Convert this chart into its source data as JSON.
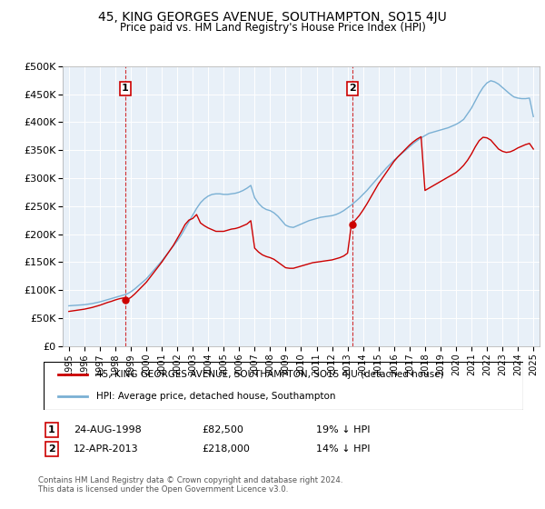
{
  "title": "45, KING GEORGES AVENUE, SOUTHAMPTON, SO15 4JU",
  "subtitle": "Price paid vs. HM Land Registry's House Price Index (HPI)",
  "legend_label_red": "45, KING GEORGES AVENUE, SOUTHAMPTON, SO15 4JU (detached house)",
  "legend_label_blue": "HPI: Average price, detached house, Southampton",
  "footnote": "Contains HM Land Registry data © Crown copyright and database right 2024.\nThis data is licensed under the Open Government Licence v3.0.",
  "sale1_date": "24-AUG-1998",
  "sale1_price": "£82,500",
  "sale1_note": "19% ↓ HPI",
  "sale2_date": "12-APR-2013",
  "sale2_price": "£218,000",
  "sale2_note": "14% ↓ HPI",
  "red_color": "#cc0000",
  "blue_color": "#7ab0d4",
  "plot_bg_color": "#e8f0f8",
  "grid_color": "#ffffff",
  "dashed_color": "#cc0000",
  "ylim": [
    0,
    500000
  ],
  "yticks": [
    0,
    50000,
    100000,
    150000,
    200000,
    250000,
    300000,
    350000,
    400000,
    450000,
    500000
  ],
  "sale1_year": 1998.625,
  "sale1_price_val": 82500,
  "sale2_year": 2013.292,
  "sale2_price_val": 218000,
  "hpi_x": [
    1995,
    1995.25,
    1995.5,
    1995.75,
    1996,
    1996.25,
    1996.5,
    1996.75,
    1997,
    1997.25,
    1997.5,
    1997.75,
    1998,
    1998.25,
    1998.5,
    1998.75,
    1999,
    1999.25,
    1999.5,
    1999.75,
    2000,
    2000.25,
    2000.5,
    2000.75,
    2001,
    2001.25,
    2001.5,
    2001.75,
    2002,
    2002.25,
    2002.5,
    2002.75,
    2003,
    2003.25,
    2003.5,
    2003.75,
    2004,
    2004.25,
    2004.5,
    2004.75,
    2005,
    2005.25,
    2005.5,
    2005.75,
    2006,
    2006.25,
    2006.5,
    2006.75,
    2007,
    2007.25,
    2007.5,
    2007.75,
    2008,
    2008.25,
    2008.5,
    2008.75,
    2009,
    2009.25,
    2009.5,
    2009.75,
    2010,
    2010.25,
    2010.5,
    2010.75,
    2011,
    2011.25,
    2011.5,
    2011.75,
    2012,
    2012.25,
    2012.5,
    2012.75,
    2013,
    2013.25,
    2013.5,
    2013.75,
    2014,
    2014.25,
    2014.5,
    2014.75,
    2015,
    2015.25,
    2015.5,
    2015.75,
    2016,
    2016.25,
    2016.5,
    2016.75,
    2017,
    2017.25,
    2017.5,
    2017.75,
    2018,
    2018.25,
    2018.5,
    2018.75,
    2019,
    2019.25,
    2019.5,
    2019.75,
    2020,
    2020.25,
    2020.5,
    2020.75,
    2021,
    2021.25,
    2021.5,
    2021.75,
    2022,
    2022.25,
    2022.5,
    2022.75,
    2023,
    2023.25,
    2023.5,
    2023.75,
    2024,
    2024.25,
    2024.5,
    2024.75,
    2025
  ],
  "hpi_y": [
    72000,
    72500,
    73000,
    73500,
    74000,
    75000,
    76000,
    77500,
    79000,
    81000,
    83000,
    85000,
    87000,
    89000,
    91000,
    93000,
    97000,
    102000,
    108000,
    114000,
    120000,
    128000,
    136000,
    144000,
    152000,
    161000,
    170000,
    179000,
    188000,
    198000,
    210000,
    222000,
    234000,
    246000,
    256000,
    263000,
    268000,
    271000,
    272000,
    272000,
    271000,
    271000,
    272000,
    273000,
    275000,
    278000,
    282000,
    287000,
    265000,
    255000,
    248000,
    244000,
    242000,
    238000,
    232000,
    224000,
    216000,
    213000,
    212000,
    215000,
    218000,
    221000,
    224000,
    226000,
    228000,
    230000,
    231000,
    232000,
    233000,
    235000,
    238000,
    242000,
    247000,
    252000,
    258000,
    264000,
    271000,
    278000,
    286000,
    294000,
    302000,
    310000,
    318000,
    325000,
    332000,
    338000,
    344000,
    350000,
    356000,
    362000,
    367000,
    372000,
    376000,
    380000,
    382000,
    384000,
    386000,
    388000,
    390000,
    393000,
    396000,
    400000,
    405000,
    415000,
    425000,
    438000,
    451000,
    462000,
    470000,
    474000,
    472000,
    468000,
    462000,
    456000,
    450000,
    445000,
    443000,
    442000,
    442000,
    443000,
    410000
  ],
  "red_x": [
    1995,
    1995.25,
    1995.5,
    1995.75,
    1996,
    1996.25,
    1996.5,
    1996.75,
    1997,
    1997.25,
    1997.5,
    1997.75,
    1998,
    1998.25,
    1998.5,
    1998.75,
    1999,
    1999.25,
    1999.5,
    1999.75,
    2000,
    2000.25,
    2000.5,
    2000.75,
    2001,
    2001.25,
    2001.5,
    2001.75,
    2002,
    2002.25,
    2002.5,
    2002.75,
    2003,
    2003.25,
    2003.5,
    2003.75,
    2004,
    2004.25,
    2004.5,
    2004.75,
    2005,
    2005.25,
    2005.5,
    2005.75,
    2006,
    2006.25,
    2006.5,
    2006.75,
    2007,
    2007.25,
    2007.5,
    2007.75,
    2008,
    2008.25,
    2008.5,
    2008.75,
    2009,
    2009.25,
    2009.5,
    2009.75,
    2010,
    2010.25,
    2010.5,
    2010.75,
    2011,
    2011.25,
    2011.5,
    2011.75,
    2012,
    2012.25,
    2012.5,
    2012.75,
    2013,
    2013.25,
    2013.5,
    2013.75,
    2014,
    2014.25,
    2014.5,
    2014.75,
    2015,
    2015.25,
    2015.5,
    2015.75,
    2016,
    2016.25,
    2016.5,
    2016.75,
    2017,
    2017.25,
    2017.5,
    2017.75,
    2018,
    2018.25,
    2018.5,
    2018.75,
    2019,
    2019.25,
    2019.5,
    2019.75,
    2020,
    2020.25,
    2020.5,
    2020.75,
    2021,
    2021.25,
    2021.5,
    2021.75,
    2022,
    2022.25,
    2022.5,
    2022.75,
    2023,
    2023.25,
    2023.5,
    2023.75,
    2024,
    2024.25,
    2024.5,
    2024.75,
    2025
  ],
  "red_y": [
    62000,
    63000,
    64000,
    65000,
    66000,
    67500,
    69000,
    71000,
    73000,
    75500,
    78000,
    80000,
    82500,
    84500,
    86000,
    82500,
    87000,
    93000,
    100000,
    107000,
    114000,
    123000,
    132000,
    141000,
    150000,
    160000,
    170000,
    180000,
    192000,
    204000,
    217000,
    225000,
    228000,
    235000,
    220000,
    215000,
    211000,
    208000,
    205000,
    205000,
    205000,
    207000,
    209000,
    210000,
    212000,
    215000,
    218000,
    224000,
    175000,
    168000,
    163000,
    160000,
    158000,
    155000,
    150000,
    145000,
    140000,
    139000,
    139000,
    141000,
    143000,
    145000,
    147000,
    149000,
    150000,
    151000,
    152000,
    153000,
    154000,
    156000,
    158000,
    161000,
    166000,
    218000,
    225000,
    233000,
    243000,
    254000,
    266000,
    278000,
    290000,
    300000,
    310000,
    320000,
    330000,
    338000,
    345000,
    352000,
    359000,
    365000,
    370000,
    374000,
    278000,
    282000,
    286000,
    290000,
    294000,
    298000,
    302000,
    306000,
    310000,
    316000,
    323000,
    332000,
    343000,
    356000,
    367000,
    373000,
    372000,
    368000,
    360000,
    352000,
    348000,
    346000,
    347000,
    350000,
    354000,
    357000,
    360000,
    362000,
    352000
  ]
}
